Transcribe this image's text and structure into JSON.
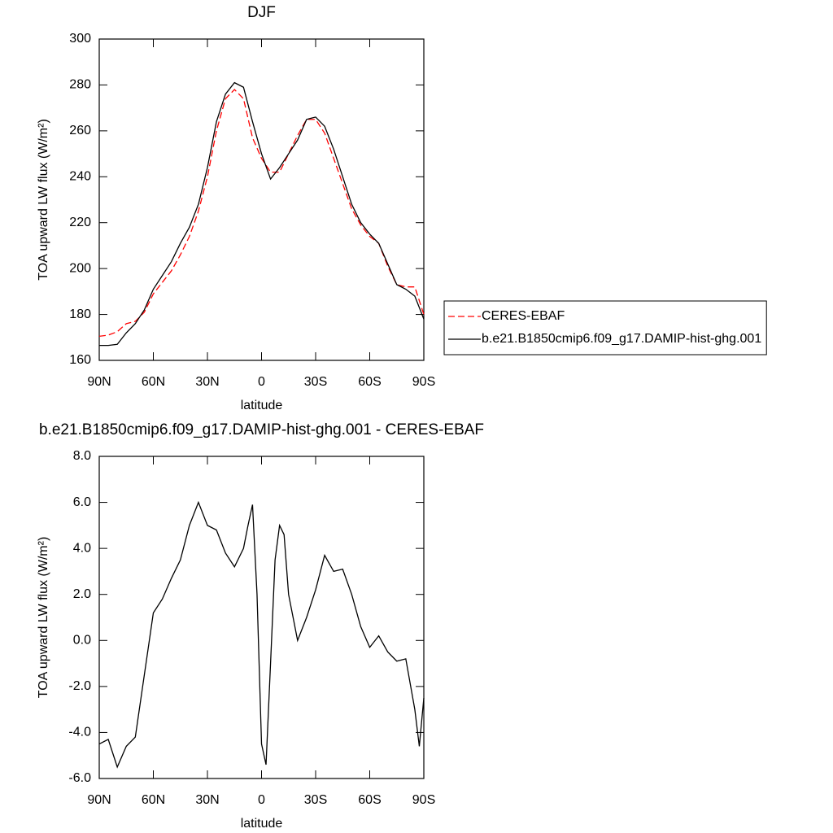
{
  "chart_data": [
    {
      "type": "line",
      "title": "DJF",
      "xlabel": "latitude",
      "ylabel": "TOA upward LW flux (W/m²)",
      "xlim": [
        90,
        -90
      ],
      "xticks": [
        {
          "value": 90,
          "label": "90N"
        },
        {
          "value": 60,
          "label": "60N"
        },
        {
          "value": 30,
          "label": "30N"
        },
        {
          "value": 0,
          "label": "0"
        },
        {
          "value": -30,
          "label": "30S"
        },
        {
          "value": -60,
          "label": "60S"
        },
        {
          "value": -90,
          "label": "90S"
        }
      ],
      "ylim": [
        160,
        300
      ],
      "yticks": [
        160,
        180,
        200,
        220,
        240,
        260,
        280,
        300
      ],
      "x": [
        90,
        85,
        80,
        75,
        70,
        65,
        60,
        55,
        50,
        45,
        40,
        35,
        30,
        25,
        20,
        15,
        10,
        5,
        0,
        -5,
        -10,
        -15,
        -20,
        -25,
        -30,
        -35,
        -40,
        -45,
        -50,
        -55,
        -60,
        -65,
        -70,
        -75,
        -80,
        -85,
        -90
      ],
      "series": [
        {
          "name": "CERES-EBAF",
          "color": "#ff0000",
          "dash": true,
          "values": [
            170.5,
            171,
            172.5,
            176,
            177,
            181,
            189,
            194,
            199,
            206,
            214,
            225,
            240,
            260,
            274,
            278,
            274,
            257,
            248,
            242,
            242,
            250,
            258,
            265,
            265,
            259,
            248,
            237,
            226,
            219,
            214,
            211,
            201,
            193,
            192,
            192,
            180
          ]
        },
        {
          "name": "b.e21.B1850cmip6.f09_g17.DAMIP-hist-ghg.001",
          "color": "#000000",
          "dash": false,
          "values": [
            166.5,
            166.5,
            167,
            172,
            176,
            182,
            191,
            197,
            203,
            211,
            218,
            228,
            244,
            264,
            276,
            281,
            279,
            264,
            250,
            239,
            244,
            250,
            256,
            265,
            266,
            262,
            252,
            240,
            228,
            220,
            215,
            211,
            202,
            193,
            191,
            188,
            178
          ]
        }
      ]
    },
    {
      "type": "line",
      "title": "b.e21.B1850cmip6.f09_g17.DAMIP-hist-ghg.001 - CERES-EBAF",
      "xlabel": "latitude",
      "ylabel": "TOA upward LW flux (W/m²)",
      "xlim": [
        90,
        -90
      ],
      "xticks": [
        {
          "value": 90,
          "label": "90N"
        },
        {
          "value": 60,
          "label": "60N"
        },
        {
          "value": 30,
          "label": "30N"
        },
        {
          "value": 0,
          "label": "0"
        },
        {
          "value": -30,
          "label": "30S"
        },
        {
          "value": -60,
          "label": "60S"
        },
        {
          "value": -90,
          "label": "90S"
        }
      ],
      "ylim": [
        -6,
        8
      ],
      "yticks": [
        {
          "value": -6,
          "label": "-6.0"
        },
        {
          "value": -4,
          "label": "-4.0"
        },
        {
          "value": -2,
          "label": "-2.0"
        },
        {
          "value": 0,
          "label": "0.0"
        },
        {
          "value": 2,
          "label": "2.0"
        },
        {
          "value": 4,
          "label": "4.0"
        },
        {
          "value": 6,
          "label": "6.0"
        },
        {
          "value": 8,
          "label": "8.0"
        }
      ],
      "x": [
        90,
        85,
        80,
        75,
        70,
        65,
        60,
        55,
        50,
        45,
        40,
        35,
        30,
        25,
        20,
        15,
        10,
        7.5,
        5,
        2.5,
        0,
        -2.5,
        -5,
        -7.5,
        -10,
        -12.5,
        -15,
        -20,
        -25,
        -30,
        -35,
        -40,
        -45,
        -50,
        -55,
        -60,
        -65,
        -70,
        -75,
        -80,
        -85,
        -87.5,
        -90
      ],
      "series": [
        {
          "color": "#000000",
          "dash": false,
          "values": [
            -4.5,
            -4.3,
            -5.5,
            -4.6,
            -4.2,
            -1.5,
            1.2,
            1.8,
            2.7,
            3.5,
            5.0,
            6.0,
            5.0,
            4.8,
            3.8,
            3.2,
            4.0,
            5.0,
            5.9,
            2.0,
            -4.5,
            -5.4,
            -1.0,
            3.5,
            5.0,
            4.6,
            2.0,
            0.0,
            1.0,
            2.2,
            3.7,
            3.0,
            3.1,
            2.0,
            0.6,
            -0.3,
            0.2,
            -0.5,
            -0.9,
            -0.8,
            -3.0,
            -4.6,
            -2.5
          ]
        }
      ]
    }
  ]
}
